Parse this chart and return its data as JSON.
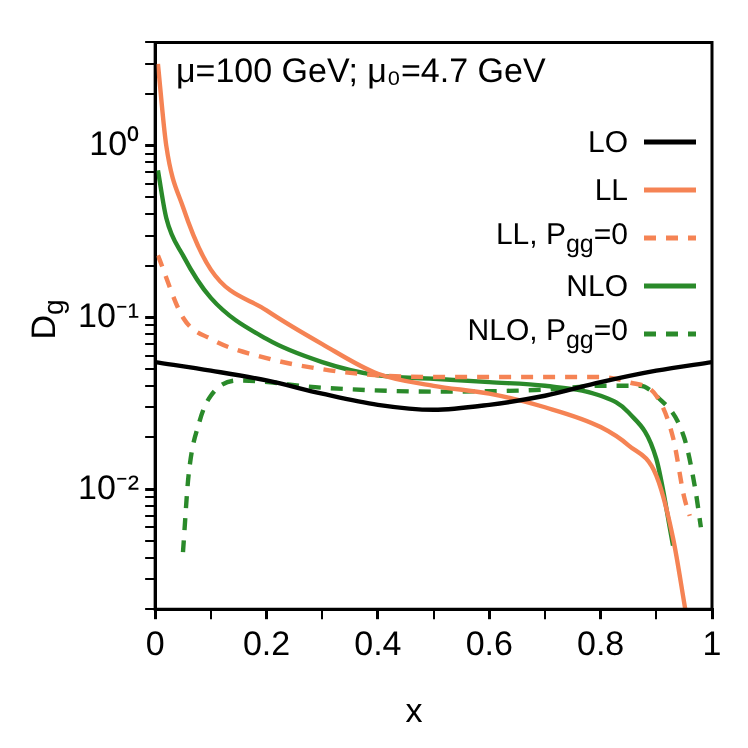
{
  "chart_data": {
    "type": "line",
    "title": "μ=100 GeV; μ₀=4.7 GeV",
    "xlabel": "x",
    "ylabel": "D$_{g}$",
    "log": "y",
    "grid": false,
    "legend": "top right",
    "marker": "none",
    "xlim": [
      0,
      1
    ],
    "ylim": [
      0.002,
      4
    ],
    "xticks": [
      0,
      {
        "value": 0.1,
        "label": null
      },
      0.2,
      {
        "value": 0.3,
        "label": null
      },
      0.4,
      {
        "value": 0.5,
        "label": null
      },
      0.6,
      {
        "value": 0.7,
        "label": null
      },
      0.8,
      {
        "value": 0.9,
        "label": null
      },
      1
    ],
    "yticks": [
      {
        "value": 0.002,
        "label": null
      },
      {
        "value": 0.003,
        "label": null
      },
      {
        "value": 0.004,
        "label": null
      },
      {
        "value": 0.005,
        "label": null
      },
      {
        "value": 0.006,
        "label": null
      },
      {
        "value": 0.007,
        "label": null
      },
      {
        "value": 0.008,
        "label": null
      },
      {
        "value": 0.009,
        "label": null
      },
      {
        "value": 0.01,
        "label": "10⁻²"
      },
      {
        "value": 0.02,
        "label": null
      },
      {
        "value": 0.03,
        "label": null
      },
      {
        "value": 0.04,
        "label": null
      },
      {
        "value": 0.05,
        "label": null
      },
      {
        "value": 0.06,
        "label": null
      },
      {
        "value": 0.07,
        "label": null
      },
      {
        "value": 0.08,
        "label": null
      },
      {
        "value": 0.09,
        "label": null
      },
      {
        "value": 0.1,
        "label": "10⁻¹"
      },
      {
        "value": 0.2,
        "label": null
      },
      {
        "value": 0.3,
        "label": null
      },
      {
        "value": 0.4,
        "label": null
      },
      {
        "value": 0.5,
        "label": null
      },
      {
        "value": 0.6,
        "label": null
      },
      {
        "value": 0.7,
        "label": null
      },
      {
        "value": 0.8,
        "label": null
      },
      {
        "value": 0.9,
        "label": null
      },
      {
        "value": 1,
        "label": "10⁰"
      },
      {
        "value": 2,
        "label": null
      },
      {
        "value": 3,
        "label": null
      },
      {
        "value": 4,
        "label": null
      }
    ],
    "series": [
      {
        "name": "LO",
        "color": "#000000",
        "line_style": "solid",
        "x": [
          0,
          0.1,
          0.2,
          0.3,
          0.4,
          0.5,
          0.6,
          0.7,
          0.8,
          0.9,
          1
        ],
        "values": [
          0.055,
          0.049,
          0.043,
          0.036,
          0.031,
          0.029,
          0.031,
          0.035,
          0.042,
          0.049,
          0.055
        ]
      },
      {
        "name": "LL",
        "color": "#f58354",
        "line_style": "solid",
        "x": [
          0.005,
          0.02,
          0.05,
          0.1,
          0.2,
          0.3,
          0.4,
          0.5,
          0.6,
          0.7,
          0.8,
          0.85,
          0.9,
          0.93,
          0.952
        ],
        "values": [
          3.0,
          1.0,
          0.44,
          0.19,
          0.11,
          0.07,
          0.047,
          0.04,
          0.036,
          0.03,
          0.023,
          0.018,
          0.012,
          0.0052,
          0.002
        ]
      },
      {
        "name": "LL, P$_{gg}$=0",
        "color": "#f58354",
        "line_style": "dashed",
        "x": [
          0.005,
          0.05,
          0.1,
          0.2,
          0.3,
          0.4,
          0.5,
          0.6,
          0.7,
          0.8,
          0.85,
          0.9,
          0.93,
          0.95,
          0.96
        ],
        "values": [
          0.23,
          0.1,
          0.075,
          0.058,
          0.05,
          0.046,
          0.045,
          0.045,
          0.045,
          0.045,
          0.042,
          0.035,
          0.02,
          0.009,
          0.007
        ]
      },
      {
        "name": "NLO",
        "color": "#2a8a2a",
        "line_style": "solid",
        "x": [
          0.005,
          0.02,
          0.05,
          0.1,
          0.2,
          0.3,
          0.4,
          0.5,
          0.6,
          0.7,
          0.8,
          0.85,
          0.9,
          0.93
        ],
        "values": [
          0.72,
          0.38,
          0.23,
          0.13,
          0.075,
          0.055,
          0.046,
          0.044,
          0.042,
          0.04,
          0.035,
          0.028,
          0.015,
          0.0047
        ]
      },
      {
        "name": "NLO, P$_{gg}$=0",
        "color": "#2a8a2a",
        "line_style": "dashed",
        "x": [
          0.05,
          0.06,
          0.08,
          0.1,
          0.15,
          0.3,
          0.5,
          0.7,
          0.8,
          0.87,
          0.9,
          0.95,
          0.97,
          0.98
        ],
        "values": [
          0.0043,
          0.012,
          0.025,
          0.035,
          0.043,
          0.039,
          0.037,
          0.038,
          0.04,
          0.04,
          0.035,
          0.02,
          0.01,
          0.006
        ]
      }
    ]
  }
}
